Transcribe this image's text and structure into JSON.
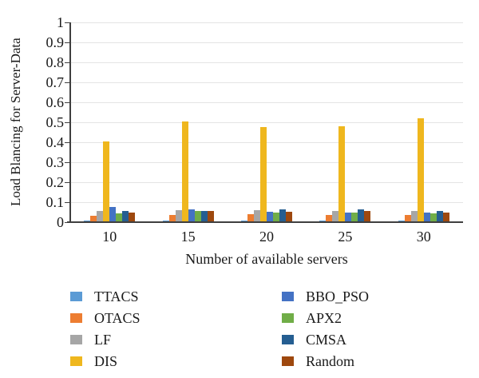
{
  "chart_data": {
    "type": "bar",
    "title": "",
    "xlabel": "Number of available servers",
    "ylabel": "Load Blancing for Server-Data",
    "categories": [
      "10",
      "15",
      "20",
      "25",
      "30"
    ],
    "ylim": [
      0,
      1
    ],
    "ytick_step": 0.1,
    "yticks": [
      "1",
      "0.9",
      "0.8",
      "0.7",
      "0.6",
      "0.5",
      "0.4",
      "0.3",
      "0.2",
      "0.1",
      "0"
    ],
    "grid": true,
    "legend_position": "bottom, two columns",
    "axis_color": "#3f3f3f",
    "gridline_color": "#e4e4e4",
    "series": [
      {
        "name": "TTACS",
        "color": "#5B9BD5",
        "values": [
          0.01,
          0.01,
          0.01,
          0.01,
          0.008
        ]
      },
      {
        "name": "OTACS",
        "color": "#ED7D31",
        "values": [
          0.032,
          0.038,
          0.04,
          0.035,
          0.035
        ]
      },
      {
        "name": "LF",
        "color": "#A6A6A6",
        "values": [
          0.058,
          0.06,
          0.06,
          0.057,
          0.055
        ]
      },
      {
        "name": "DIS",
        "color": "#EFB71E",
        "values": [
          0.405,
          0.505,
          0.478,
          0.48,
          0.52
        ]
      },
      {
        "name": "BBO_PSO",
        "color": "#4472C4",
        "values": [
          0.078,
          0.065,
          0.052,
          0.05,
          0.05
        ]
      },
      {
        "name": "APX2",
        "color": "#70AD47",
        "values": [
          0.046,
          0.055,
          0.05,
          0.05,
          0.046
        ]
      },
      {
        "name": "CMSA",
        "color": "#255E91",
        "values": [
          0.055,
          0.055,
          0.065,
          0.063,
          0.055
        ]
      },
      {
        "name": "Random",
        "color": "#9E480E",
        "values": [
          0.047,
          0.055,
          0.052,
          0.055,
          0.05
        ]
      }
    ]
  }
}
